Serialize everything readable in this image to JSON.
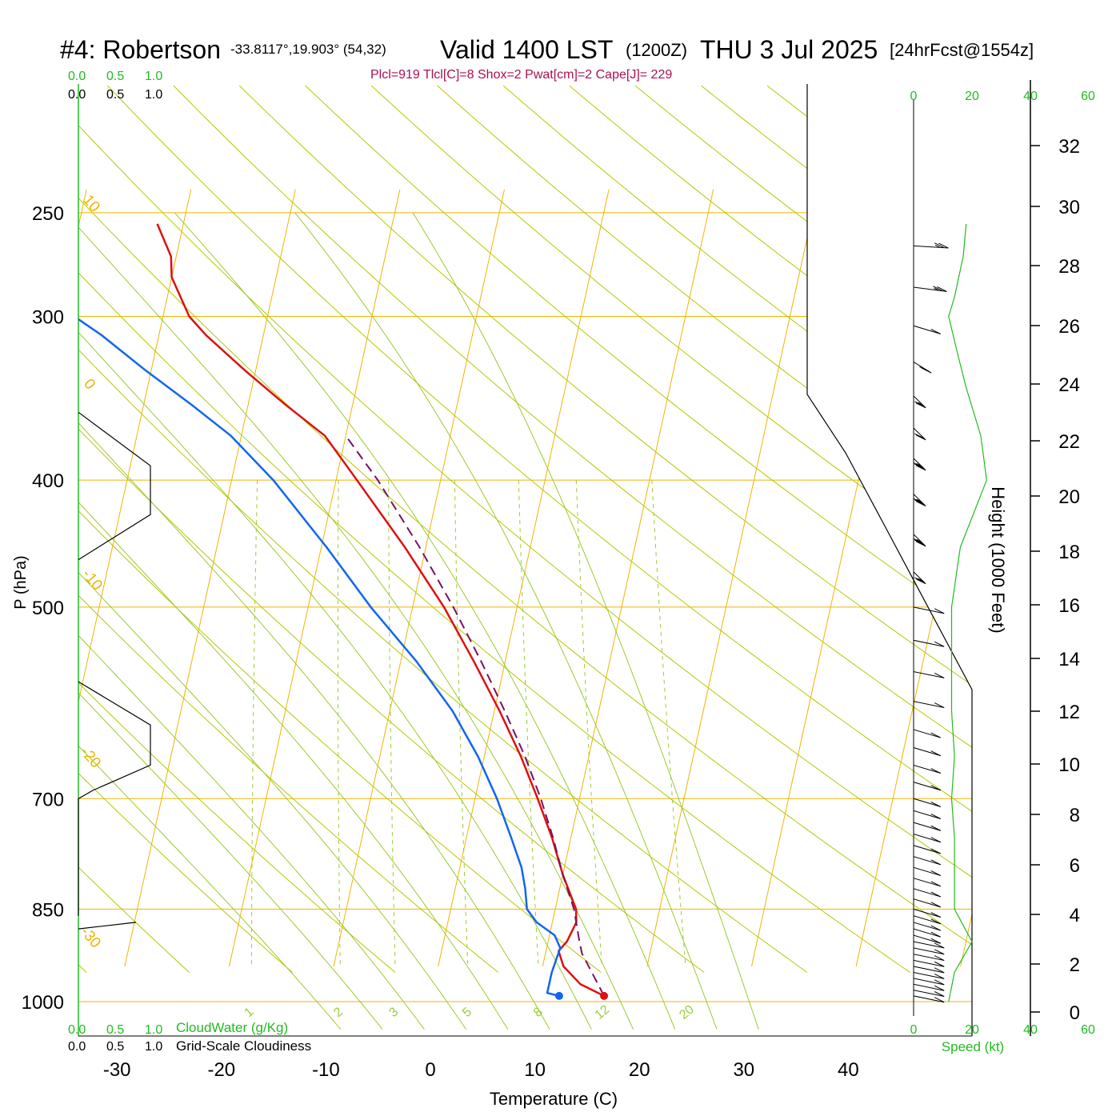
{
  "header": {
    "station": "#4: Robertson",
    "coords": "-33.8117°,19.903° (54,32)",
    "valid": "Valid 1400 LST",
    "zulu": "(1200Z)",
    "date": "THU 3 Jul 2025",
    "forecast": "[24hrFcst@1554z]",
    "indices": "Plcl=919 Tlcl[C]=8 Shox=2 Pwat[cm]=2 Cape[J]= 229"
  },
  "colors": {
    "temperature": "#dd1111",
    "dewpoint": "#1166ee",
    "parcel": "#7a1060",
    "isotherm": "#f0b400",
    "dry_adiabat": "#b5c800",
    "moist_adiabat": "#9acb2f",
    "mixing_ratio": "#9acd32",
    "accent_green": "#22bb22",
    "indices": "#aa1155"
  },
  "chart_data": {
    "type": "line",
    "subtype": "skew-T log-P",
    "xlabel": "Temperature (C)",
    "ylabel": "P (hPa)",
    "right_label": "Height (1000 Feet)",
    "x_ticks": [
      "-30",
      "-20",
      "-10",
      "0",
      "10",
      "20",
      "30",
      "40"
    ],
    "pressure_ticks": [
      "250",
      "300",
      "400",
      "500",
      "700",
      "850",
      "1000"
    ],
    "height_ticks": [
      "0",
      "2",
      "4",
      "6",
      "8",
      "10",
      "12",
      "14",
      "16",
      "18",
      "20",
      "22",
      "24",
      "26",
      "28",
      "30",
      "32"
    ],
    "isotherm_labels": [
      "10",
      "0",
      "-10",
      "-20",
      "-30",
      "0",
      "10",
      "20",
      "30"
    ],
    "mixing_ratio_labels": [
      "1",
      "2",
      "3",
      "5",
      "8",
      "12",
      "20"
    ],
    "cloud_scale_top_green": [
      "0.0",
      "0.5",
      "1.0"
    ],
    "cloud_scale_top_black": [
      "0.0",
      "0.5",
      "1.0"
    ],
    "cloud_scale_bottom_green": [
      "0.0",
      "0.5",
      "1.0"
    ],
    "cloud_scale_bottom_black": [
      "0.0",
      "0.5",
      "1.0"
    ],
    "cloudwater_label": "CloudWater (g/Kg)",
    "cloudiness_label": "Grid-Scale Cloudiness",
    "speed_ticks_top": [
      "0",
      "20",
      "40",
      "60"
    ],
    "speed_ticks_bottom": [
      "0",
      "20",
      "40",
      "60"
    ],
    "speed_label": "Speed (kt)",
    "series": [
      {
        "name": "Temperature",
        "points": [
          [
            990,
            16.5
          ],
          [
            970,
            14
          ],
          [
            940,
            12
          ],
          [
            915,
            11.2
          ],
          [
            900,
            11.8
          ],
          [
            870,
            12.3
          ],
          [
            850,
            12.0
          ],
          [
            800,
            10.0
          ],
          [
            750,
            8.2
          ],
          [
            700,
            6.0
          ],
          [
            650,
            3.5
          ],
          [
            600,
            0.5
          ],
          [
            550,
            -3.0
          ],
          [
            500,
            -7.0
          ],
          [
            450,
            -12.0
          ],
          [
            400,
            -18.0
          ],
          [
            370,
            -22.0
          ],
          [
            350,
            -26.5
          ],
          [
            330,
            -31.0
          ],
          [
            310,
            -35.5
          ],
          [
            300,
            -37.5
          ],
          [
            280,
            -40.0
          ],
          [
            270,
            -40.5
          ],
          [
            255,
            -42.5
          ]
        ]
      },
      {
        "name": "Dewpoint",
        "points": [
          [
            990,
            12.2
          ],
          [
            985,
            11.0
          ],
          [
            950,
            11.0
          ],
          [
            910,
            11.3
          ],
          [
            890,
            10.5
          ],
          [
            870,
            8.5
          ],
          [
            850,
            7.3
          ],
          [
            820,
            6.7
          ],
          [
            790,
            5.9
          ],
          [
            750,
            4.3
          ],
          [
            700,
            2.1
          ],
          [
            650,
            -0.6
          ],
          [
            600,
            -4.0
          ],
          [
            550,
            -8.5
          ],
          [
            500,
            -14.0
          ],
          [
            450,
            -19.5
          ],
          [
            400,
            -26.0
          ],
          [
            370,
            -31.0
          ],
          [
            350,
            -35.5
          ],
          [
            330,
            -40.5
          ],
          [
            310,
            -45.5
          ],
          [
            300,
            -48.5
          ],
          [
            280,
            -56.0
          ],
          [
            270,
            -62.0
          ],
          [
            260,
            -66.0
          ]
        ]
      },
      {
        "name": "Parcel",
        "points": [
          [
            990,
            16.5
          ],
          [
            919,
            13.5
          ],
          [
            900,
            13.0
          ],
          [
            850,
            11.8
          ],
          [
            800,
            10.0
          ],
          [
            750,
            8.3
          ],
          [
            700,
            6.3
          ],
          [
            650,
            3.9
          ],
          [
            600,
            1.0
          ],
          [
            550,
            -2.3
          ],
          [
            500,
            -6.1
          ],
          [
            450,
            -10.6
          ],
          [
            400,
            -16.0
          ],
          [
            370,
            -20.0
          ]
        ]
      }
    ],
    "cloudwater_profile": [
      [
        355,
        0.0
      ],
      [
        390,
        1.0
      ],
      [
        425,
        1.0
      ],
      [
        460,
        0.0
      ],
      [
        570,
        0.0
      ],
      [
        615,
        1.0
      ],
      [
        660,
        1.0
      ],
      [
        690,
        0.2
      ],
      [
        700,
        0.0
      ],
      [
        860,
        0.0
      ],
      [
        870,
        0.8
      ],
      [
        880,
        0.0
      ]
    ],
    "wind_speed_kt": [
      [
        1000,
        12
      ],
      [
        950,
        14
      ],
      [
        900,
        20
      ],
      [
        850,
        14
      ],
      [
        800,
        14
      ],
      [
        750,
        14
      ],
      [
        700,
        13
      ],
      [
        650,
        14
      ],
      [
        600,
        13
      ],
      [
        550,
        13
      ],
      [
        500,
        13
      ],
      [
        450,
        16
      ],
      [
        400,
        25
      ],
      [
        370,
        23
      ],
      [
        340,
        18
      ],
      [
        320,
        15
      ],
      [
        300,
        12
      ],
      [
        290,
        14
      ],
      [
        270,
        17
      ],
      [
        255,
        18
      ]
    ],
    "wind_barbs": [
      {
        "p": 990,
        "dir": 300,
        "spd": 10
      },
      {
        "p": 980,
        "dir": 300,
        "spd": 10
      },
      {
        "p": 970,
        "dir": 300,
        "spd": 10
      },
      {
        "p": 960,
        "dir": 300,
        "spd": 10
      },
      {
        "p": 950,
        "dir": 300,
        "spd": 10
      },
      {
        "p": 940,
        "dir": 300,
        "spd": 10
      },
      {
        "p": 930,
        "dir": 300,
        "spd": 10
      },
      {
        "p": 920,
        "dir": 300,
        "spd": 10
      },
      {
        "p": 910,
        "dir": 300,
        "spd": 10
      },
      {
        "p": 900,
        "dir": 300,
        "spd": 10
      },
      {
        "p": 890,
        "dir": 310,
        "spd": 10
      },
      {
        "p": 880,
        "dir": 310,
        "spd": 10
      },
      {
        "p": 870,
        "dir": 310,
        "spd": 10
      },
      {
        "p": 860,
        "dir": 310,
        "spd": 10
      },
      {
        "p": 850,
        "dir": 310,
        "spd": 10
      },
      {
        "p": 835,
        "dir": 310,
        "spd": 10
      },
      {
        "p": 820,
        "dir": 310,
        "spd": 10
      },
      {
        "p": 805,
        "dir": 310,
        "spd": 10
      },
      {
        "p": 790,
        "dir": 310,
        "spd": 10
      },
      {
        "p": 775,
        "dir": 310,
        "spd": 10
      },
      {
        "p": 760,
        "dir": 310,
        "spd": 10
      },
      {
        "p": 745,
        "dir": 310,
        "spd": 10
      },
      {
        "p": 730,
        "dir": 310,
        "spd": 10
      },
      {
        "p": 715,
        "dir": 310,
        "spd": 10
      },
      {
        "p": 700,
        "dir": 310,
        "spd": 10
      },
      {
        "p": 680,
        "dir": 310,
        "spd": 10
      },
      {
        "p": 660,
        "dir": 310,
        "spd": 10
      },
      {
        "p": 640,
        "dir": 310,
        "spd": 10
      },
      {
        "p": 620,
        "dir": 310,
        "spd": 10
      },
      {
        "p": 590,
        "dir": 300,
        "spd": 10
      },
      {
        "p": 560,
        "dir": 300,
        "spd": 10
      },
      {
        "p": 530,
        "dir": 300,
        "spd": 10
      },
      {
        "p": 500,
        "dir": 300,
        "spd": 10
      },
      {
        "p": 470,
        "dir": 340,
        "spd": 15
      },
      {
        "p": 440,
        "dir": 340,
        "spd": 25
      },
      {
        "p": 410,
        "dir": 340,
        "spd": 25
      },
      {
        "p": 385,
        "dir": 340,
        "spd": 25
      },
      {
        "p": 365,
        "dir": 340,
        "spd": 20
      },
      {
        "p": 345,
        "dir": 340,
        "spd": 15
      },
      {
        "p": 325,
        "dir": 330,
        "spd": 15
      },
      {
        "p": 305,
        "dir": 310,
        "spd": 10
      },
      {
        "p": 285,
        "dir": 290,
        "spd": 15
      },
      {
        "p": 265,
        "dir": 280,
        "spd": 15
      }
    ],
    "surface_temp_c": 16.5,
    "surface_dewpoint_c": 12.2
  }
}
